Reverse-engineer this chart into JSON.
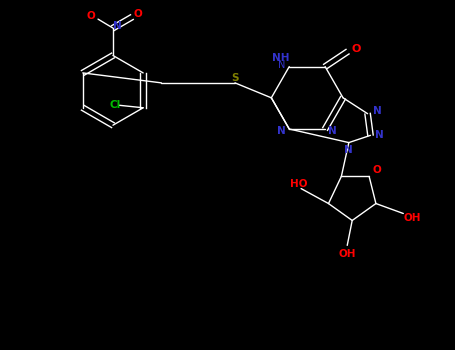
{
  "background_color": "#000000",
  "figsize": [
    4.55,
    3.5
  ],
  "dpi": 100,
  "bond_color": "#ffffff",
  "S_color": "#808000",
  "N_color": "#3333cc",
  "O_color": "#ff0000",
  "Cl_color": "#00bb00",
  "xlim": [
    0.0,
    9.0
  ],
  "ylim": [
    0.0,
    7.0
  ]
}
